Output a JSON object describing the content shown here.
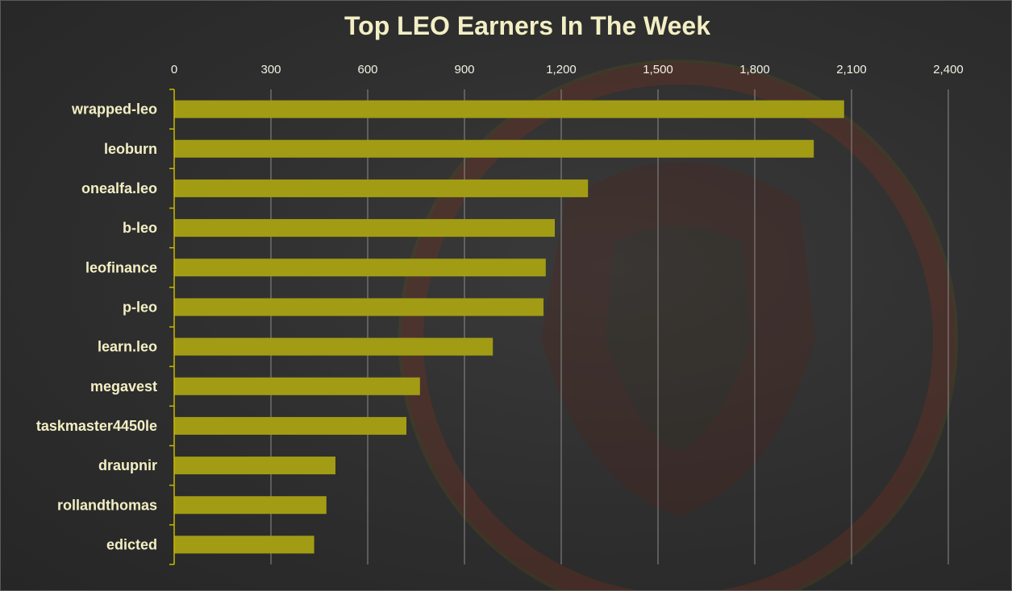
{
  "colors": {
    "bar": "#a19c14",
    "title": "#f3efc4",
    "text": "#f1f1e6",
    "grid": "#8c8c8c",
    "axis": "#c9b800",
    "background": "#2c2c2c",
    "watermark": "#7a2a1a"
  },
  "chart_data": {
    "type": "bar",
    "orientation": "horizontal",
    "title": "Top LEO Earners In The Week",
    "xlabel": "",
    "ylabel": "",
    "xlim": [
      0,
      2400
    ],
    "ticks": [
      0,
      300,
      600,
      900,
      1200,
      1500,
      1800,
      2100,
      2400
    ],
    "tick_labels": [
      "0",
      "300",
      "600",
      "900",
      "1,200",
      "1,500",
      "1,800",
      "2,100",
      "2,400"
    ],
    "tick_position": "top",
    "grid": true,
    "legend": "none",
    "categories": [
      "wrapped-leo",
      "leoburn",
      "onealfa.leo",
      "b-leo",
      "leofinance",
      "p-leo",
      "learn.leo",
      "megavest",
      "taskmaster4450le",
      "draupnir",
      "rollandthomas",
      "edicted"
    ],
    "values": [
      2077,
      1983,
      1283,
      1180,
      1152,
      1145,
      988,
      762,
      720,
      500,
      472,
      434
    ]
  }
}
